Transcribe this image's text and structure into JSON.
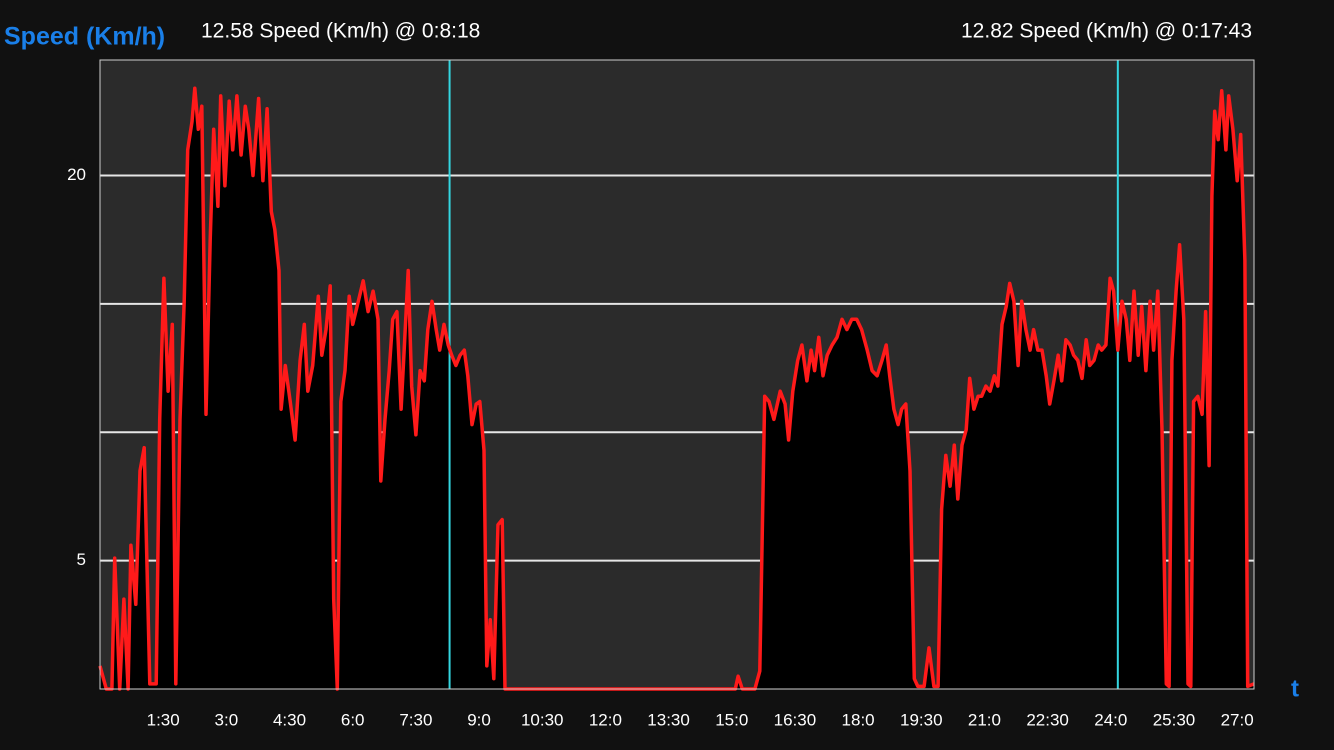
{
  "chart_data": {
    "type": "area",
    "y_label": "Speed (Km/h)",
    "x_label": "t",
    "color": "#ff1a1a",
    "fill_color": "#000000",
    "cursor_color": "#33d6e0",
    "cursors": [
      {
        "x": 498,
        "label": "12.58 Speed (Km/h) @ 0:8:18"
      },
      {
        "x": 1450,
        "label": "12.82 Speed (Km/h) @ 0:17:43"
      }
    ],
    "xlim": [
      0,
      1644
    ],
    "ylim": [
      0,
      24.5
    ],
    "yticks": [
      5,
      20
    ],
    "grid_lines": [
      5,
      10,
      15,
      20
    ],
    "xticks": [
      {
        "value": 90,
        "label": "1:30"
      },
      {
        "value": 180,
        "label": "3:0"
      },
      {
        "value": 270,
        "label": "4:30"
      },
      {
        "value": 360,
        "label": "6:0"
      },
      {
        "value": 450,
        "label": "7:30"
      },
      {
        "value": 540,
        "label": "9:0"
      },
      {
        "value": 630,
        "label": "10:30"
      },
      {
        "value": 720,
        "label": "12:0"
      },
      {
        "value": 810,
        "label": "13:30"
      },
      {
        "value": 900,
        "label": "15:0"
      },
      {
        "value": 990,
        "label": "16:30"
      },
      {
        "value": 1080,
        "label": "18:0"
      },
      {
        "value": 1170,
        "label": "19:30"
      },
      {
        "value": 1260,
        "label": "21:0"
      },
      {
        "value": 1350,
        "label": "22:30"
      },
      {
        "value": 1440,
        "label": "24:0"
      },
      {
        "value": 1530,
        "label": "25:30"
      },
      {
        "value": 1620,
        "label": "27:0"
      }
    ],
    "x": [
      0,
      9,
      17,
      21,
      28,
      34,
      40,
      44,
      51,
      57,
      63,
      71,
      80,
      85,
      91,
      97,
      103,
      108,
      114,
      120,
      125,
      131,
      135,
      140,
      145,
      151,
      157,
      162,
      168,
      172,
      178,
      184,
      189,
      195,
      201,
      207,
      212,
      218,
      226,
      232,
      238,
      244,
      249,
      255,
      258,
      264,
      271,
      278,
      285,
      291,
      296,
      303,
      311,
      316,
      322,
      328,
      333,
      338,
      343,
      349,
      355,
      360,
      368,
      375,
      382,
      389,
      396,
      400,
      406,
      412,
      417,
      423,
      429,
      433,
      439,
      444,
      450,
      456,
      462,
      467,
      473,
      479,
      484,
      490,
      496,
      501,
      507,
      513,
      519,
      524,
      530,
      536,
      541,
      547,
      551,
      556,
      561,
      567,
      573,
      577,
      584,
      905,
      909,
      915,
      933,
      940,
      947,
      953,
      960,
      969,
      976,
      981,
      987,
      994,
      1000,
      1007,
      1013,
      1018,
      1024,
      1030,
      1036,
      1043,
      1050,
      1057,
      1064,
      1071,
      1078,
      1085,
      1093,
      1100,
      1107,
      1114,
      1120,
      1125,
      1131,
      1137,
      1142,
      1148,
      1154,
      1160,
      1165,
      1174,
      1181,
      1188,
      1194,
      1199,
      1205,
      1211,
      1217,
      1222,
      1228,
      1234,
      1239,
      1245,
      1251,
      1256,
      1262,
      1268,
      1274,
      1279,
      1285,
      1291,
      1296,
      1302,
      1308,
      1313,
      1319,
      1325,
      1330,
      1336,
      1342,
      1348,
      1353,
      1359,
      1365,
      1370,
      1376,
      1382,
      1387,
      1393,
      1399,
      1405,
      1410,
      1416,
      1422,
      1427,
      1433,
      1439,
      1444,
      1450,
      1456,
      1462,
      1467,
      1473,
      1479,
      1484,
      1490,
      1496,
      1501,
      1507,
      1513,
      1519,
      1523,
      1527,
      1533,
      1538,
      1544,
      1550,
      1554,
      1558,
      1564,
      1570,
      1575,
      1580,
      1584,
      1588,
      1593,
      1598,
      1604,
      1608,
      1614,
      1620,
      1625,
      1631,
      1635,
      1644
    ],
    "values": [
      0.9,
      0,
      0,
      5.1,
      0,
      3.5,
      0,
      5.6,
      3.3,
      8.5,
      9.4,
      0.2,
      0.2,
      10.5,
      16.0,
      11.6,
      14.2,
      0.2,
      10.5,
      15.1,
      21.0,
      22.1,
      23.4,
      21.8,
      22.7,
      10.7,
      17.5,
      21.8,
      18.8,
      23.1,
      19.6,
      22.9,
      21.0,
      23.1,
      20.8,
      22.7,
      21.8,
      20.0,
      23.0,
      19.8,
      22.6,
      18.6,
      17.9,
      16.3,
      10.9,
      12.6,
      11.2,
      9.7,
      12.8,
      14.2,
      11.6,
      12.6,
      15.3,
      13.0,
      14.0,
      15.7,
      3.5,
      0,
      11.2,
      12.4,
      15.3,
      14.2,
      15.1,
      15.9,
      14.7,
      15.5,
      14.4,
      8.1,
      10.5,
      12.4,
      14.4,
      14.7,
      10.9,
      13.0,
      16.3,
      11.8,
      9.9,
      12.4,
      12.0,
      14.0,
      15.1,
      14.0,
      13.2,
      14.2,
      13.4,
      13.0,
      12.6,
      13.0,
      13.2,
      12.2,
      10.3,
      11.1,
      11.2,
      9.3,
      0.9,
      2.7,
      0.4,
      6.4,
      6.6,
      0,
      0,
      0,
      0.5,
      0,
      0,
      0.7,
      11.4,
      11.2,
      10.5,
      11.6,
      11.1,
      9.7,
      11.6,
      12.8,
      13.4,
      12.0,
      13.2,
      12.4,
      13.7,
      12.2,
      13.0,
      13.4,
      13.7,
      14.4,
      14.0,
      14.4,
      14.4,
      14.0,
      13.2,
      12.4,
      12.2,
      12.8,
      13.4,
      12.2,
      10.9,
      10.3,
      10.9,
      11.1,
      8.5,
      0.4,
      0.1,
      0.1,
      1.6,
      0.1,
      0.1,
      7.0,
      9.1,
      7.9,
      9.5,
      7.4,
      9.5,
      10.1,
      12.1,
      10.9,
      11.4,
      11.4,
      11.8,
      11.6,
      12.2,
      11.8,
      14.2,
      14.9,
      15.8,
      15.1,
      12.6,
      15.1,
      14.0,
      13.2,
      14.0,
      13.2,
      13.2,
      12.2,
      11.1,
      12.0,
      13.0,
      12.0,
      13.6,
      13.4,
      13.0,
      12.8,
      12.1,
      13.6,
      12.6,
      12.8,
      13.4,
      13.2,
      13.4,
      16.0,
      15.5,
      13.2,
      15.1,
      14.4,
      12.8,
      15.5,
      13.0,
      14.9,
      12.4,
      15.1,
      13.2,
      15.5,
      10.1,
      0.2,
      0.1,
      12.8,
      15.5,
      17.3,
      14.4,
      0.2,
      0.1,
      11.2,
      11.4,
      10.7,
      14.7,
      8.7,
      19.2,
      22.5,
      21.4,
      23.3,
      21.0,
      23.1,
      21.8,
      19.8,
      21.6,
      16.7,
      0.1,
      0.2
    ]
  }
}
